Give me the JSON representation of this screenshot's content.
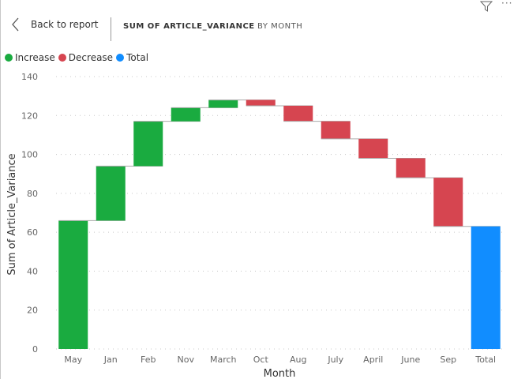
{
  "header": {
    "back_label": "Back to report",
    "title": "SUM OF ARTICLE_VARIANCE",
    "subtitle": "BY MONTH",
    "more_label": "···"
  },
  "legend": [
    {
      "label": "Increase",
      "color": "#1AAB40"
    },
    {
      "label": "Decrease",
      "color": "#D64550"
    },
    {
      "label": "Total",
      "color": "#118DFF"
    }
  ],
  "chart_data": {
    "type": "waterfall",
    "title": "Sum of Article_Variance by Month",
    "xlabel": "Month",
    "ylabel": "Sum of Article_Variance",
    "ylim": [
      0,
      140
    ],
    "yticks": [
      0,
      20,
      40,
      60,
      80,
      100,
      120,
      140
    ],
    "grid": true,
    "legend_position": "top-left",
    "categories": [
      "May",
      "Jan",
      "Feb",
      "Nov",
      "March",
      "Oct",
      "Aug",
      "July",
      "April",
      "June",
      "Sep",
      "Total"
    ],
    "values": [
      66,
      28,
      23,
      7,
      4,
      -3,
      -8,
      -9,
      -10,
      -10,
      -25,
      63
    ],
    "total_index": 11
  }
}
